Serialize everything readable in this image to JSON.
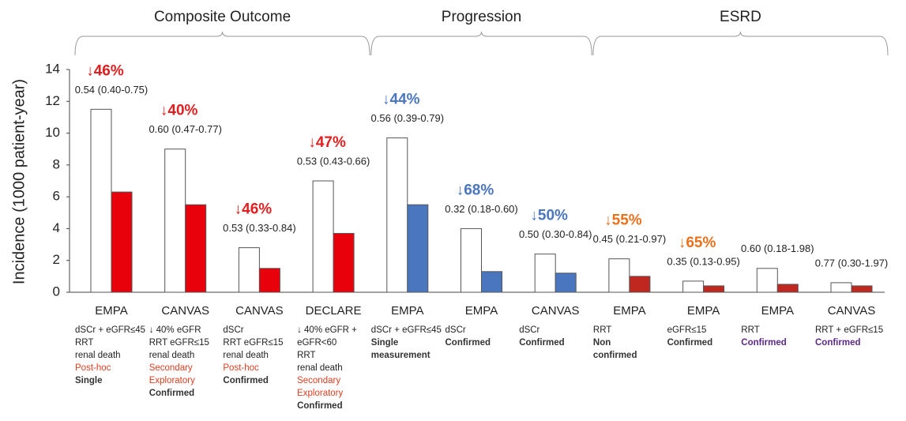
{
  "chart_data": {
    "type": "bar",
    "y_label": "Incidence (1000 patient-year)",
    "ylim": [
      0,
      14
    ],
    "yticks": [
      0,
      2,
      4,
      6,
      8,
      10,
      12,
      14
    ],
    "sections": [
      "Composite Outcome",
      "Progression",
      "ESRD"
    ],
    "categories": [
      "EMPA",
      "CANVAS",
      "CANVAS",
      "DECLARE",
      "EMPA",
      "EMPA",
      "CANVAS",
      "EMPA",
      "EMPA",
      "EMPA",
      "CANVAS"
    ],
    "series": [
      {
        "color": "#ffffff",
        "values": [
          11.5,
          9.0,
          2.8,
          7.0,
          9.7,
          4.0,
          2.4,
          2.1,
          0.7,
          1.5,
          0.6
        ]
      },
      {
        "colors": [
          "#e8000b",
          "#e8000b",
          "#e8000b",
          "#e8000b",
          "#4a76c0",
          "#4a76c0",
          "#4a76c0",
          "#c0271f",
          "#c0271f",
          "#c0271f",
          "#c0271f"
        ],
        "values": [
          6.3,
          5.5,
          1.5,
          3.7,
          5.5,
          1.3,
          1.2,
          1.0,
          0.4,
          0.5,
          0.4
        ]
      }
    ],
    "reductions": [
      {
        "text": "↓46%",
        "color": "#e02020"
      },
      {
        "text": "↓40%",
        "color": "#e02020"
      },
      {
        "text": "↓46%",
        "color": "#e02020"
      },
      {
        "text": "↓47%",
        "color": "#e02020"
      },
      {
        "text": "↓44%",
        "color": "#4a76c0"
      },
      {
        "text": "↓68%",
        "color": "#4a76c0"
      },
      {
        "text": "↓50%",
        "color": "#4a76c0"
      },
      {
        "text": "↓55%",
        "color": "#e9711c"
      },
      {
        "text": "↓65%",
        "color": "#e9711c"
      }
    ],
    "hr_labels": [
      "0.54 (0.40-0.75)",
      "0.60 (0.47-0.77)",
      "0.53 (0.33-0.84)",
      "0.53 (0.43-0.66)",
      "0.56 (0.39-0.79)",
      "0.32 (0.18-0.60)",
      "0.50 (0.30-0.84)",
      "0.45 (0.21-0.97)",
      "0.35 (0.13-0.95)",
      "0.60 (0.18-1.98)",
      "0.77 (0.30-1.97)"
    ],
    "notes": [
      [
        {
          "text": "dSCr + eGFR≤45"
        },
        {
          "text": "RRT"
        },
        {
          "text": "renal death"
        },
        {
          "text": "Post-hoc",
          "color": "#e03c1f"
        },
        {
          "text": "Single",
          "bold": true
        }
      ],
      [
        {
          "text": "↓ 40% eGFR"
        },
        {
          "text": "RRT eGFR≤15"
        },
        {
          "text": "renal death"
        },
        {
          "text": "Secondary",
          "color": "#e03c1f"
        },
        {
          "text": "Exploratory",
          "color": "#e03c1f"
        },
        {
          "text": "Confirmed",
          "bold": true
        }
      ],
      [
        {
          "text": "dSCr"
        },
        {
          "text": "RRT eGFR≤15"
        },
        {
          "text": "renal death"
        },
        {
          "text": "Post-hoc",
          "color": "#e03c1f"
        },
        {
          "text": "Confirmed",
          "bold": true
        }
      ],
      [
        {
          "text": "↓ 40% eGFR +"
        },
        {
          "text": "eGFR<60"
        },
        {
          "text": "RRT"
        },
        {
          "text": "renal death"
        },
        {
          "text": "Secondary",
          "color": "#e03c1f"
        },
        {
          "text": "Exploratory",
          "color": "#e03c1f"
        },
        {
          "text": "Confirmed",
          "bold": true
        }
      ],
      [
        {
          "text": "dSCr + eGFR≤45"
        },
        {
          "text": "Single",
          "bold": true
        },
        {
          "text": "measurement",
          "bold": true
        }
      ],
      [
        {
          "text": "dSCr"
        },
        {
          "text": "Confirmed",
          "bold": true
        }
      ],
      [
        {
          "text": "dSCr"
        },
        {
          "text": "Confirmed",
          "bold": true
        }
      ],
      [
        {
          "text": "RRT"
        },
        {
          "text": "Non",
          "bold": true
        },
        {
          "text": "confirmed",
          "bold": true
        }
      ],
      [
        {
          "text": "eGFR≤15"
        },
        {
          "text": "Confirmed",
          "bold": true
        }
      ],
      [
        {
          "text": "RRT"
        },
        {
          "text": "Confirmed",
          "color": "#5b2a86",
          "bold": true
        }
      ],
      [
        {
          "text": "RRT + eGFR≤15"
        },
        {
          "text": "Confirmed",
          "color": "#5b2a86",
          "bold": true
        }
      ]
    ]
  }
}
